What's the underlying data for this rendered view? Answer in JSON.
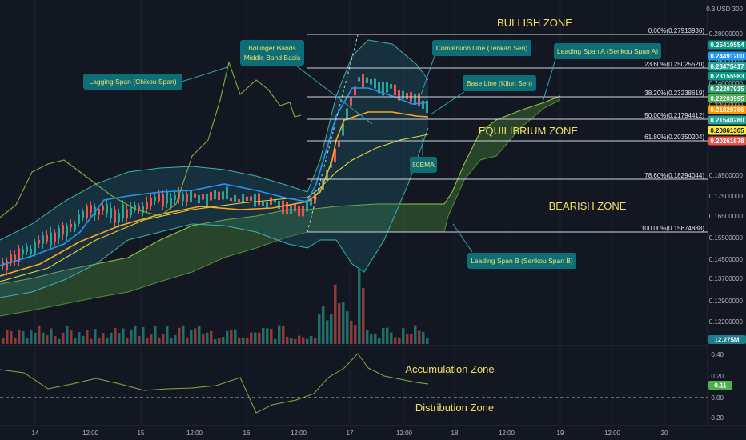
{
  "price_axis": {
    "header": "0.3 USD 300",
    "ticks": [
      "0.28000000",
      "0.26000000",
      "0.24000000",
      "0.22000000",
      "0.18500000",
      "0.17500000",
      "0.16500000",
      "0.15500000",
      "0.14500000",
      "0.13700000",
      "0.12900000",
      "0.12200000"
    ],
    "tags": [
      {
        "text": "0.25410554",
        "color": "#089981"
      },
      {
        "text": "0.24491200",
        "color": "#2196f3"
      },
      {
        "text": "0.23475417",
        "color": "#26a69a"
      },
      {
        "text": "0.23155983",
        "color": "#089981"
      },
      {
        "text": "0.22207915",
        "color": "#2a9d6f"
      },
      {
        "text": "0.22203995",
        "color": "#4caf50"
      },
      {
        "text": "0.21820766",
        "color": "#ff9800"
      },
      {
        "text": "0.21540280",
        "color": "#26a69a"
      },
      {
        "text": "0.20861305",
        "color": "#ffeb3b"
      },
      {
        "text": "0.20261678",
        "color": "#ef5350"
      }
    ],
    "volume_tag": "12.275M"
  },
  "fib_levels": [
    {
      "text": "0.00%(0.27913936)"
    },
    {
      "text": "23.60%(0.25025520)"
    },
    {
      "text": "38.20%(0.23238619)"
    },
    {
      "text": "50.00%(0.21794412)"
    },
    {
      "text": "61.80%(0.20350204)"
    },
    {
      "text": "78.60%(0.18294044)"
    },
    {
      "text": "100.00%(0.15674888)"
    }
  ],
  "zones": {
    "bullish": "BULLISH ZONE",
    "equilibrium": "EQUILIBRIUM ZONE",
    "bearish": "BEARISH ZONE",
    "accumulation": "Accumulation Zone",
    "distribution": "Distribution Zone"
  },
  "annotations": {
    "lagging": "Lagging Span (Chikou Span)",
    "bollinger_1": "Bollinger Bands",
    "bollinger_2": "Middle Band Basis",
    "conversion": "Conversion Line (Tenkan Sen)",
    "leading_a": "Leading Span A (Senkou Span A)",
    "base": "Base Line (Kijun Sen)",
    "ema": "50EMA",
    "leading_b": "Leading Span B (Senkou Span B)"
  },
  "oscillator": {
    "ticks": [
      "0.40",
      "0.20",
      "0.00",
      "-0.20"
    ],
    "value_tag": "0.11"
  },
  "time_axis": [
    "14",
    "12:00",
    "15",
    "12:00",
    "16",
    "12:00",
    "17",
    "12:00",
    "18",
    "12:00",
    "19",
    "12:00",
    "20"
  ],
  "colors": {
    "background": "#131722",
    "up": "#26a69a",
    "down": "#ef5350",
    "fib": "#d1d4dc",
    "cloud": "#3a6b35",
    "zone_text": "#f0e060",
    "annotation_box": "#0d6e78"
  }
}
